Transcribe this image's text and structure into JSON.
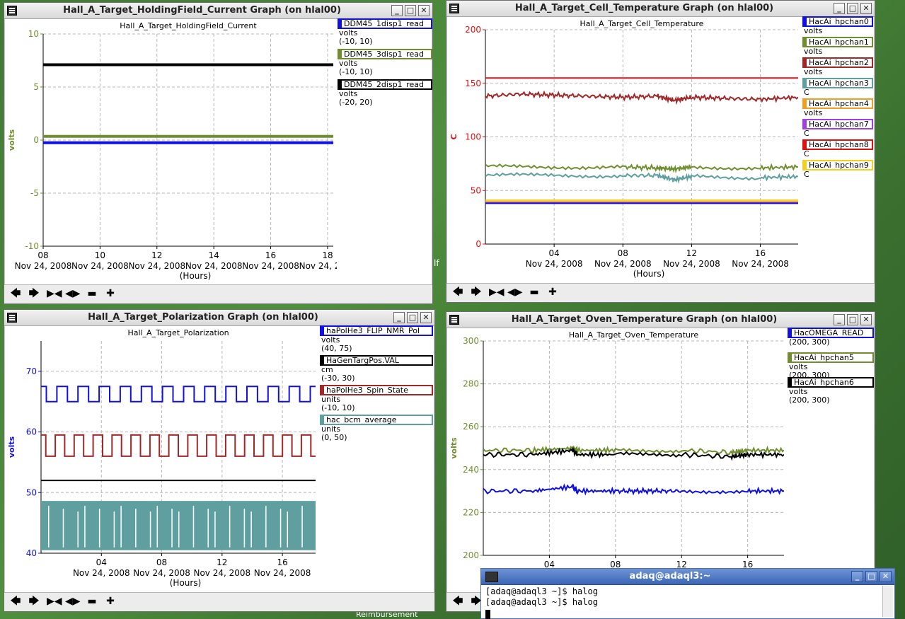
{
  "windows": {
    "holding": {
      "window_title": "Hall_A_Target_HoldingField_Current Graph (on hlal00)",
      "plot_title": "Hall_A_Target_HoldingField_Current",
      "ylabel": "volts",
      "xlabel": "(Hours)",
      "date_label": "Nov 24, 2008",
      "legend": [
        {
          "name": "DDM45_1disp1_read",
          "unit": "volts",
          "range": "(-10, 10)",
          "color": "#1010e0"
        },
        {
          "name": "DDM45_3disp1_read",
          "unit": "volts",
          "range": "(-10, 10)",
          "color": "#6f8f2f"
        },
        {
          "name": "DDM45_2disp1_read",
          "unit": "volts",
          "range": "(-20, 20)",
          "color": "#000000"
        }
      ]
    },
    "cell": {
      "window_title": "Hall_A_Target_Cell_Temperature Graph (on hlal00)",
      "plot_title": "Hall_A_Target_Cell_Temperature",
      "ylabel": "C",
      "xlabel": "(Hours)",
      "date_label": "Nov 24, 2008",
      "legend": [
        {
          "name": "HacAi_hpchan0",
          "unit": "volts",
          "range": "",
          "color": "#1010e0"
        },
        {
          "name": "HacAi_hpchan1",
          "unit": "volts",
          "range": "",
          "color": "#6f8f2f"
        },
        {
          "name": "HacAi_hpchan2",
          "unit": "volts",
          "range": "",
          "color": "#a02828"
        },
        {
          "name": "HacAi_hpchan3",
          "unit": "C",
          "range": "",
          "color": "#5f9f9f"
        },
        {
          "name": "HacAi_hpchan4",
          "unit": "volts",
          "range": "",
          "color": "#f0a020"
        },
        {
          "name": "HacAi_hpchan7",
          "unit": "C",
          "range": "",
          "color": "#a040e0"
        },
        {
          "name": "HacAi_hpchan8",
          "unit": "C",
          "range": "",
          "color": "#e01010"
        },
        {
          "name": "HacAi_hpchan9",
          "unit": "C",
          "range": "",
          "color": "#f0d020"
        }
      ]
    },
    "polar": {
      "window_title": "Hall_A_Target_Polarization Graph (on hlal00)",
      "plot_title": "Hall_A_Target_Polarization",
      "ylabel": "volts",
      "xlabel": "(Hours)",
      "date_label": "Nov 24, 2008",
      "legend": [
        {
          "name": "haPolHe3_FLIP_NMR_Pol",
          "unit": "volts",
          "range": "(40, 75)",
          "color": "#1010e0"
        },
        {
          "name": "HaGenTargPos.VAL",
          "unit": "cm",
          "range": "(-30, 30)",
          "color": "#000000"
        },
        {
          "name": "haPolHe3_Spin_State",
          "unit": "units",
          "range": "(-10, 10)",
          "color": "#a02828"
        },
        {
          "name": "hac_bcm_average",
          "unit": "units",
          "range": "(0, 50)",
          "color": "#5f9f9f"
        }
      ]
    },
    "oven": {
      "window_title": "Hall_A_Target_Oven_Temperature Graph (on hlal00)",
      "plot_title": "Hall_A_Target_Oven_Temperature",
      "ylabel": "volts",
      "legend": [
        {
          "name": "HacOMEGA_READ",
          "unit": "",
          "range": "(200, 300)",
          "color": "#1010e0"
        },
        {
          "name": "HacAi_hpchan5",
          "unit": "volts",
          "range": "(200, 300)",
          "color": "#6f8f2f"
        },
        {
          "name": "HacAi_hpchan6",
          "unit": "volts",
          "range": "(200, 300)",
          "color": "#000000"
        }
      ]
    }
  },
  "toolbar": {
    "icons": [
      "arrow-left-icon",
      "arrow-right-icon",
      "zoom-in-icon",
      "zoom-out-icon",
      "scale-down-icon",
      "scale-up-icon"
    ],
    "glyphs": [
      "🡄",
      "🡆",
      "▶◀",
      "◀▶",
      "▬",
      "✚"
    ]
  },
  "terminal": {
    "title": "adaq@adaql3:~",
    "lines": [
      "[adaq@adaql3 ~]$ halog",
      "[adaq@adaql3 ~]$ halog"
    ]
  },
  "desktop": {
    "reimbursement_label": "Reimbursement",
    "fragment_label": "lf"
  },
  "chart_data": [
    {
      "id": "holding",
      "type": "line",
      "title": "Hall_A_Target_HoldingField_Current",
      "xlabel": "(Hours)",
      "ylabel": "volts",
      "x_ticks": [
        "08",
        "10",
        "12",
        "14",
        "16",
        "18"
      ],
      "xlim": [
        8,
        18.2
      ],
      "ylim": [
        -10,
        10
      ],
      "y_ticks": [
        -10,
        -5,
        0,
        5,
        10
      ],
      "grid": true,
      "series": [
        {
          "name": "DDM45_1disp1_read",
          "color": "#1010e0",
          "x": [
            8,
            18.2
          ],
          "y": [
            -0.25,
            -0.25
          ]
        },
        {
          "name": "DDM45_3disp1_read",
          "color": "#6f8f2f",
          "x": [
            8,
            18.2
          ],
          "y": [
            0.35,
            0.35
          ]
        },
        {
          "name": "DDM45_2disp1_read",
          "color": "#000000",
          "x": [
            8,
            18.2
          ],
          "y": [
            7.1,
            7.1
          ]
        }
      ]
    },
    {
      "id": "cell",
      "type": "line",
      "title": "Hall_A_Target_Cell_Temperature",
      "xlabel": "(Hours)",
      "ylabel": "C",
      "x_ticks": [
        "04",
        "08",
        "12",
        "16"
      ],
      "xlim": [
        0,
        18.2
      ],
      "ylim": [
        0,
        200
      ],
      "y_ticks": [
        0,
        50,
        100,
        150,
        200
      ],
      "grid": true,
      "series": [
        {
          "name": "HacAi_hpchan8",
          "color": "#e01010",
          "x": [
            0,
            18.2
          ],
          "y": [
            155,
            155
          ]
        },
        {
          "name": "HacAi_hpchan2",
          "color": "#a02828",
          "x": [
            0,
            2,
            4,
            6,
            8,
            10,
            11,
            12,
            14,
            16,
            18.2
          ],
          "y": [
            138,
            140,
            139,
            138,
            137,
            138,
            134,
            137,
            136,
            135,
            137
          ]
        },
        {
          "name": "HacAi_hpchan1",
          "color": "#6f8f2f",
          "x": [
            0,
            4,
            8,
            10,
            11,
            12,
            16,
            18.2
          ],
          "y": [
            72,
            72,
            72,
            71,
            70,
            72,
            71,
            72
          ]
        },
        {
          "name": "HacAi_hpchan3",
          "color": "#5f9f9f",
          "x": [
            0,
            4,
            8,
            10,
            11,
            12,
            16,
            18.2
          ],
          "y": [
            64,
            64,
            64,
            64,
            60,
            63,
            62,
            63
          ]
        },
        {
          "name": "HacAi_hpchan9",
          "color": "#f0d020",
          "x": [
            0,
            18.2
          ],
          "y": [
            41,
            41
          ]
        },
        {
          "name": "HacAi_hpchan4",
          "color": "#f0a020",
          "x": [
            0,
            18.2
          ],
          "y": [
            39.5,
            39.5
          ]
        },
        {
          "name": "HacAi_hpchan7",
          "color": "#a040e0",
          "x": [
            0,
            18.2
          ],
          "y": [
            38.5,
            38.5
          ]
        },
        {
          "name": "HacAi_hpchan0",
          "color": "#1010e0",
          "x": [
            0,
            18.2
          ],
          "y": [
            38,
            38
          ]
        }
      ]
    },
    {
      "id": "polar",
      "type": "line",
      "title": "Hall_A_Target_Polarization",
      "xlabel": "(Hours)",
      "ylabel": "volts",
      "x_ticks": [
        "04",
        "08",
        "12",
        "16"
      ],
      "xlim": [
        0,
        18.2
      ],
      "ylim": [
        40,
        75
      ],
      "y_ticks": [
        40,
        50,
        60,
        70
      ],
      "grid": true,
      "series": [
        {
          "name": "haPolHe3_FLIP_NMR_Pol",
          "color": "#1010e0",
          "pattern": "square",
          "low": 65,
          "high": 67.5,
          "periods": 26
        },
        {
          "name": "haPolHe3_Spin_State",
          "color": "#a02828",
          "pattern": "square",
          "low": 56,
          "high": 59.5,
          "periods": 29
        },
        {
          "name": "HaGenTargPos.VAL",
          "color": "#000000",
          "x": [
            0,
            18.2
          ],
          "y": [
            52,
            52
          ]
        },
        {
          "name": "hac_bcm_average",
          "color": "#5f9f9f",
          "pattern": "band",
          "low": 40.5,
          "high": 48.5
        }
      ]
    },
    {
      "id": "oven",
      "type": "line",
      "title": "Hall_A_Target_Oven_Temperature",
      "ylabel": "volts",
      "x_ticks": [
        "04",
        "08",
        "12",
        "16"
      ],
      "xlim": [
        0,
        18.2
      ],
      "ylim": [
        200,
        300
      ],
      "y_ticks": [
        200,
        220,
        240,
        260,
        280,
        300
      ],
      "grid": true,
      "series": [
        {
          "name": "HacAi_hpchan5",
          "color": "#6f8f2f",
          "x": [
            0,
            3,
            5.4,
            5.7,
            8,
            12,
            15,
            16,
            18.2
          ],
          "y": [
            249,
            249,
            250,
            249,
            249,
            249,
            248,
            249,
            249
          ]
        },
        {
          "name": "HacAi_hpchan6",
          "color": "#000000",
          "x": [
            0,
            3,
            5.4,
            5.7,
            8,
            12,
            15,
            16,
            18.2
          ],
          "y": [
            247,
            247,
            249,
            247,
            247,
            247,
            246,
            247,
            247
          ]
        },
        {
          "name": "HacOMEGA_READ",
          "color": "#1010e0",
          "x": [
            0,
            3,
            5.4,
            5.7,
            8,
            10,
            12,
            16,
            18.2
          ],
          "y": [
            230,
            230,
            232,
            230,
            230,
            230,
            230,
            230,
            230
          ]
        }
      ]
    }
  ]
}
